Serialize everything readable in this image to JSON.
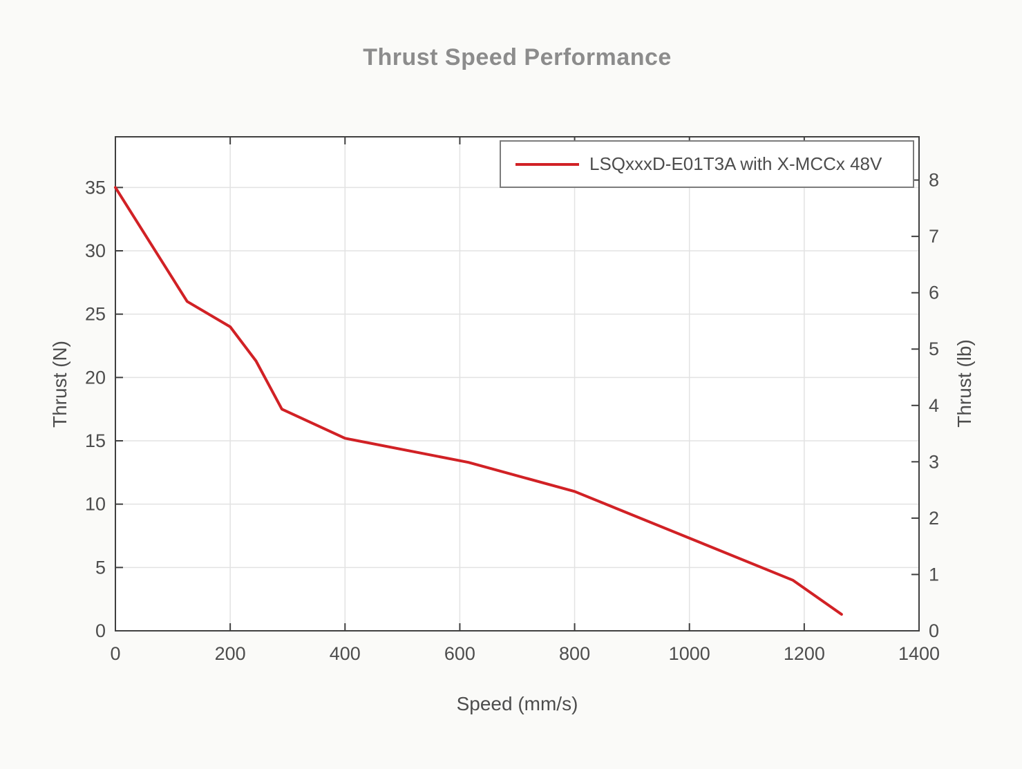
{
  "chart_data": {
    "type": "line",
    "title": "Thrust Speed Performance",
    "xlabel": "Speed (mm/s)",
    "ylabel_left": "Thrust (N)",
    "ylabel_right": "Thrust (lb)",
    "xlim": [
      0,
      1400
    ],
    "ylim_left": [
      0,
      39
    ],
    "lb_to_N": 4.44822,
    "x_ticks": [
      0,
      200,
      400,
      600,
      800,
      1000,
      1200,
      1400
    ],
    "y_ticks_left": [
      0,
      5,
      10,
      15,
      20,
      25,
      30,
      35
    ],
    "y_ticks_right": [
      0,
      1,
      2,
      3,
      4,
      5,
      6,
      7,
      8
    ],
    "grid": true,
    "legend": {
      "position": "top-right",
      "entries": [
        {
          "label": "LSQxxxD-E01T3A with X-MCCx 48V",
          "color": "#d12125"
        }
      ]
    },
    "series": [
      {
        "name": "LSQxxxD-E01T3A with X-MCCx 48V",
        "color": "#d12125",
        "x": [
          0,
          125,
          200,
          245,
          290,
          400,
          615,
          800,
          1180,
          1265
        ],
        "y_N": [
          35,
          26,
          24,
          21.3,
          17.5,
          15.2,
          13.3,
          11,
          4,
          1.3
        ]
      }
    ]
  },
  "colors": {
    "line": "#d12125",
    "title_text": "#8c8c8c",
    "axis_text": "#4d4d4d",
    "frame": "#3f3f3f",
    "grid": "#e2e2e2",
    "legend_border": "#7b7b7b",
    "plot_bg": "#ffffff",
    "figure_bg": "#fafaf8"
  }
}
